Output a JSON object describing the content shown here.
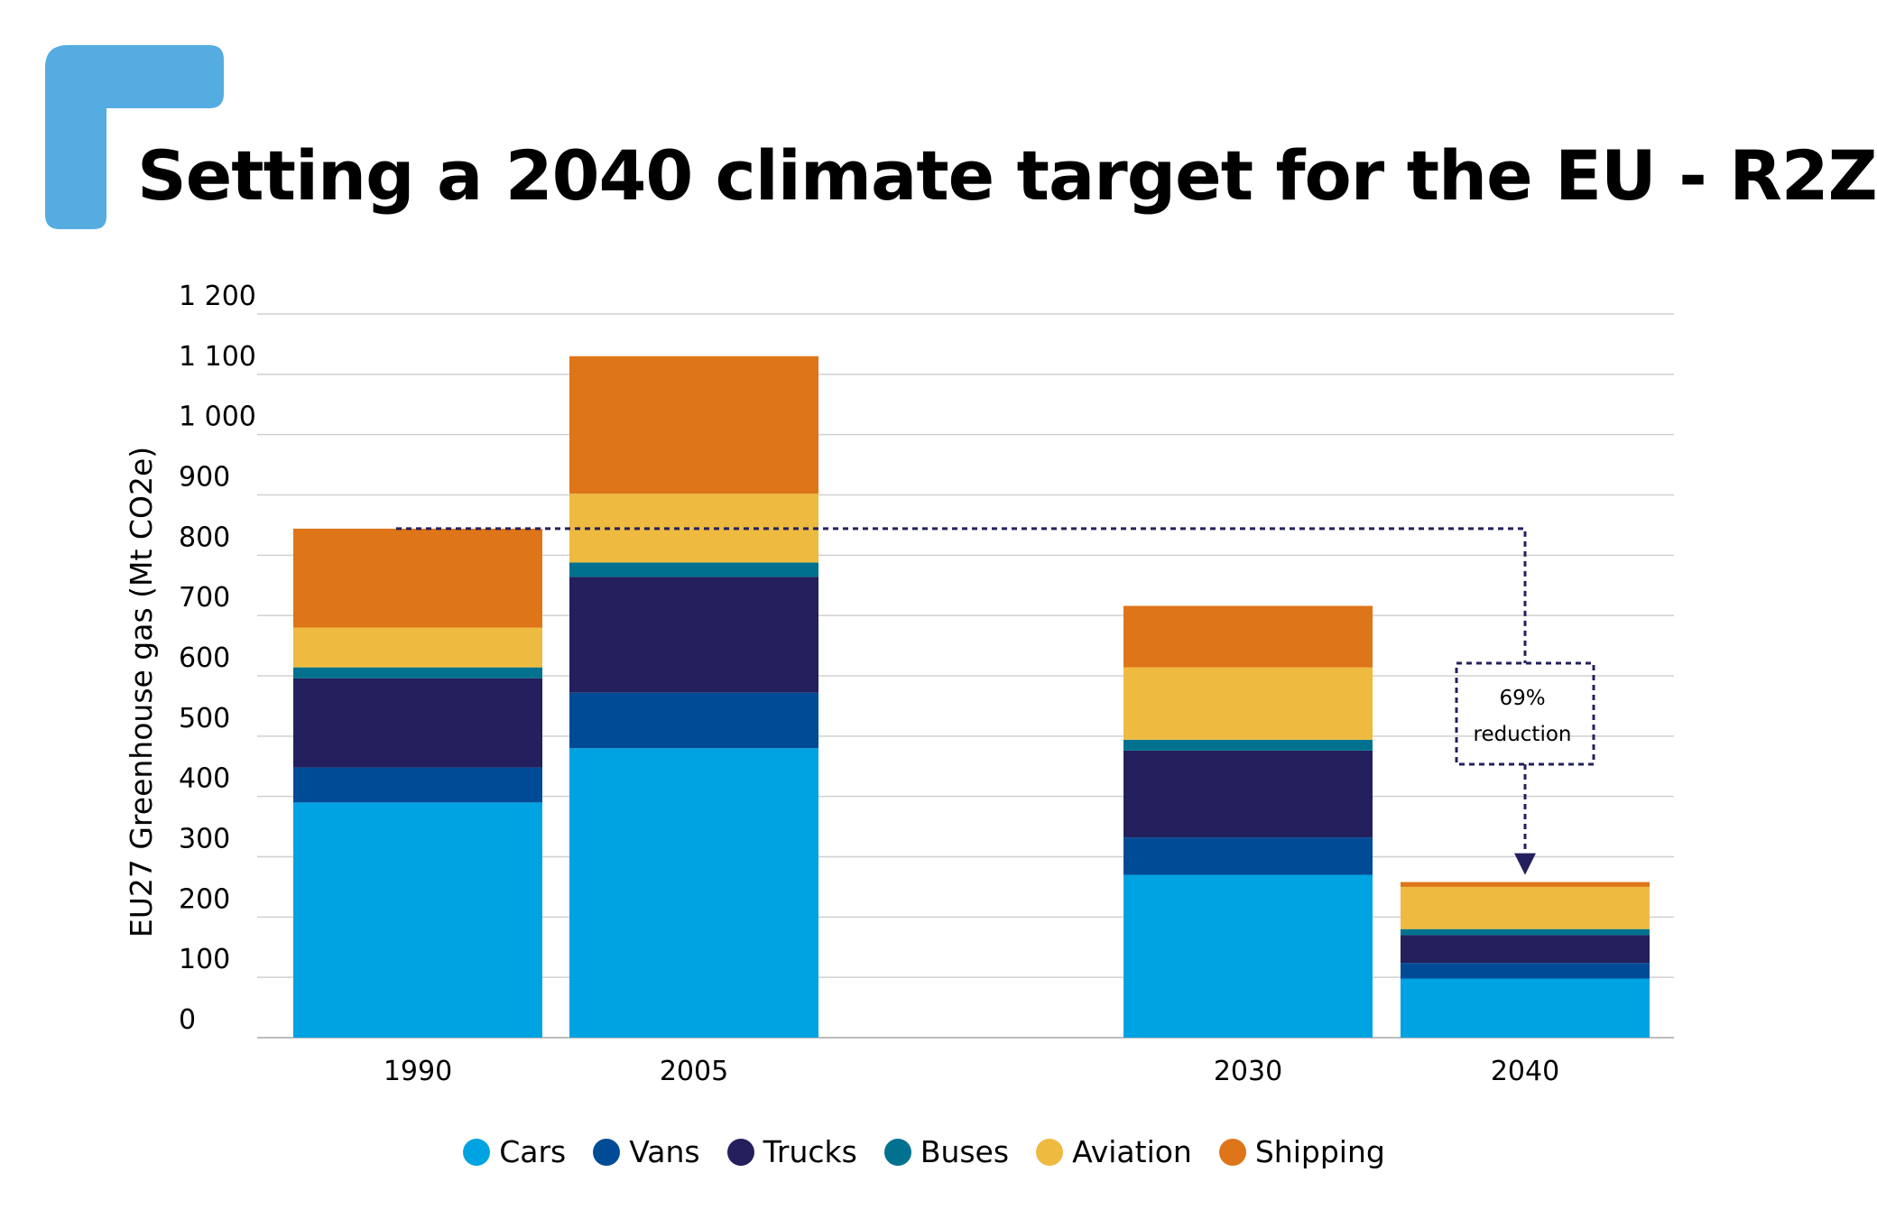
{
  "header": {
    "title": "Setting a 2040 climate target for the EU - R2Z"
  },
  "brand": {
    "accent": "#55ACE0"
  },
  "chart_data": {
    "type": "bar",
    "stacked": true,
    "title": "",
    "xlabel": "",
    "ylabel": "EU27 Greenhouse gas (Mt CO2e)",
    "ylim": [
      0,
      1200
    ],
    "yticks": [
      0,
      100,
      200,
      300,
      400,
      500,
      600,
      700,
      800,
      900,
      1000,
      1100,
      1200
    ],
    "ytick_labels": [
      "0",
      "100",
      "200",
      "300",
      "400",
      "500",
      "600",
      "700",
      "800",
      "900",
      "1 000",
      "1 100",
      "1 200"
    ],
    "grid": true,
    "legend_position": "bottom-center",
    "categories": [
      "1990",
      "2005",
      "2030",
      "2040"
    ],
    "series": [
      {
        "name": "Cars",
        "color": "#00A3E2",
        "values": [
          390,
          480,
          270,
          98
        ]
      },
      {
        "name": "Vans",
        "color": "#004B96",
        "values": [
          58,
          92,
          62,
          26
        ]
      },
      {
        "name": "Trucks",
        "color": "#23205D",
        "values": [
          148,
          192,
          144,
          46
        ]
      },
      {
        "name": "Buses",
        "color": "#00728F",
        "values": [
          18,
          24,
          18,
          10
        ]
      },
      {
        "name": "Aviation",
        "color": "#EEBB40",
        "values": [
          66,
          114,
          120,
          70
        ]
      },
      {
        "name": "Shipping",
        "color": "#DE7519",
        "values": [
          164,
          228,
          102,
          8
        ]
      }
    ],
    "annotation": {
      "text_line1": "69%",
      "text_line2": "reduction",
      "from": "1990",
      "to": "2040",
      "style": "dashed-arrow"
    }
  }
}
